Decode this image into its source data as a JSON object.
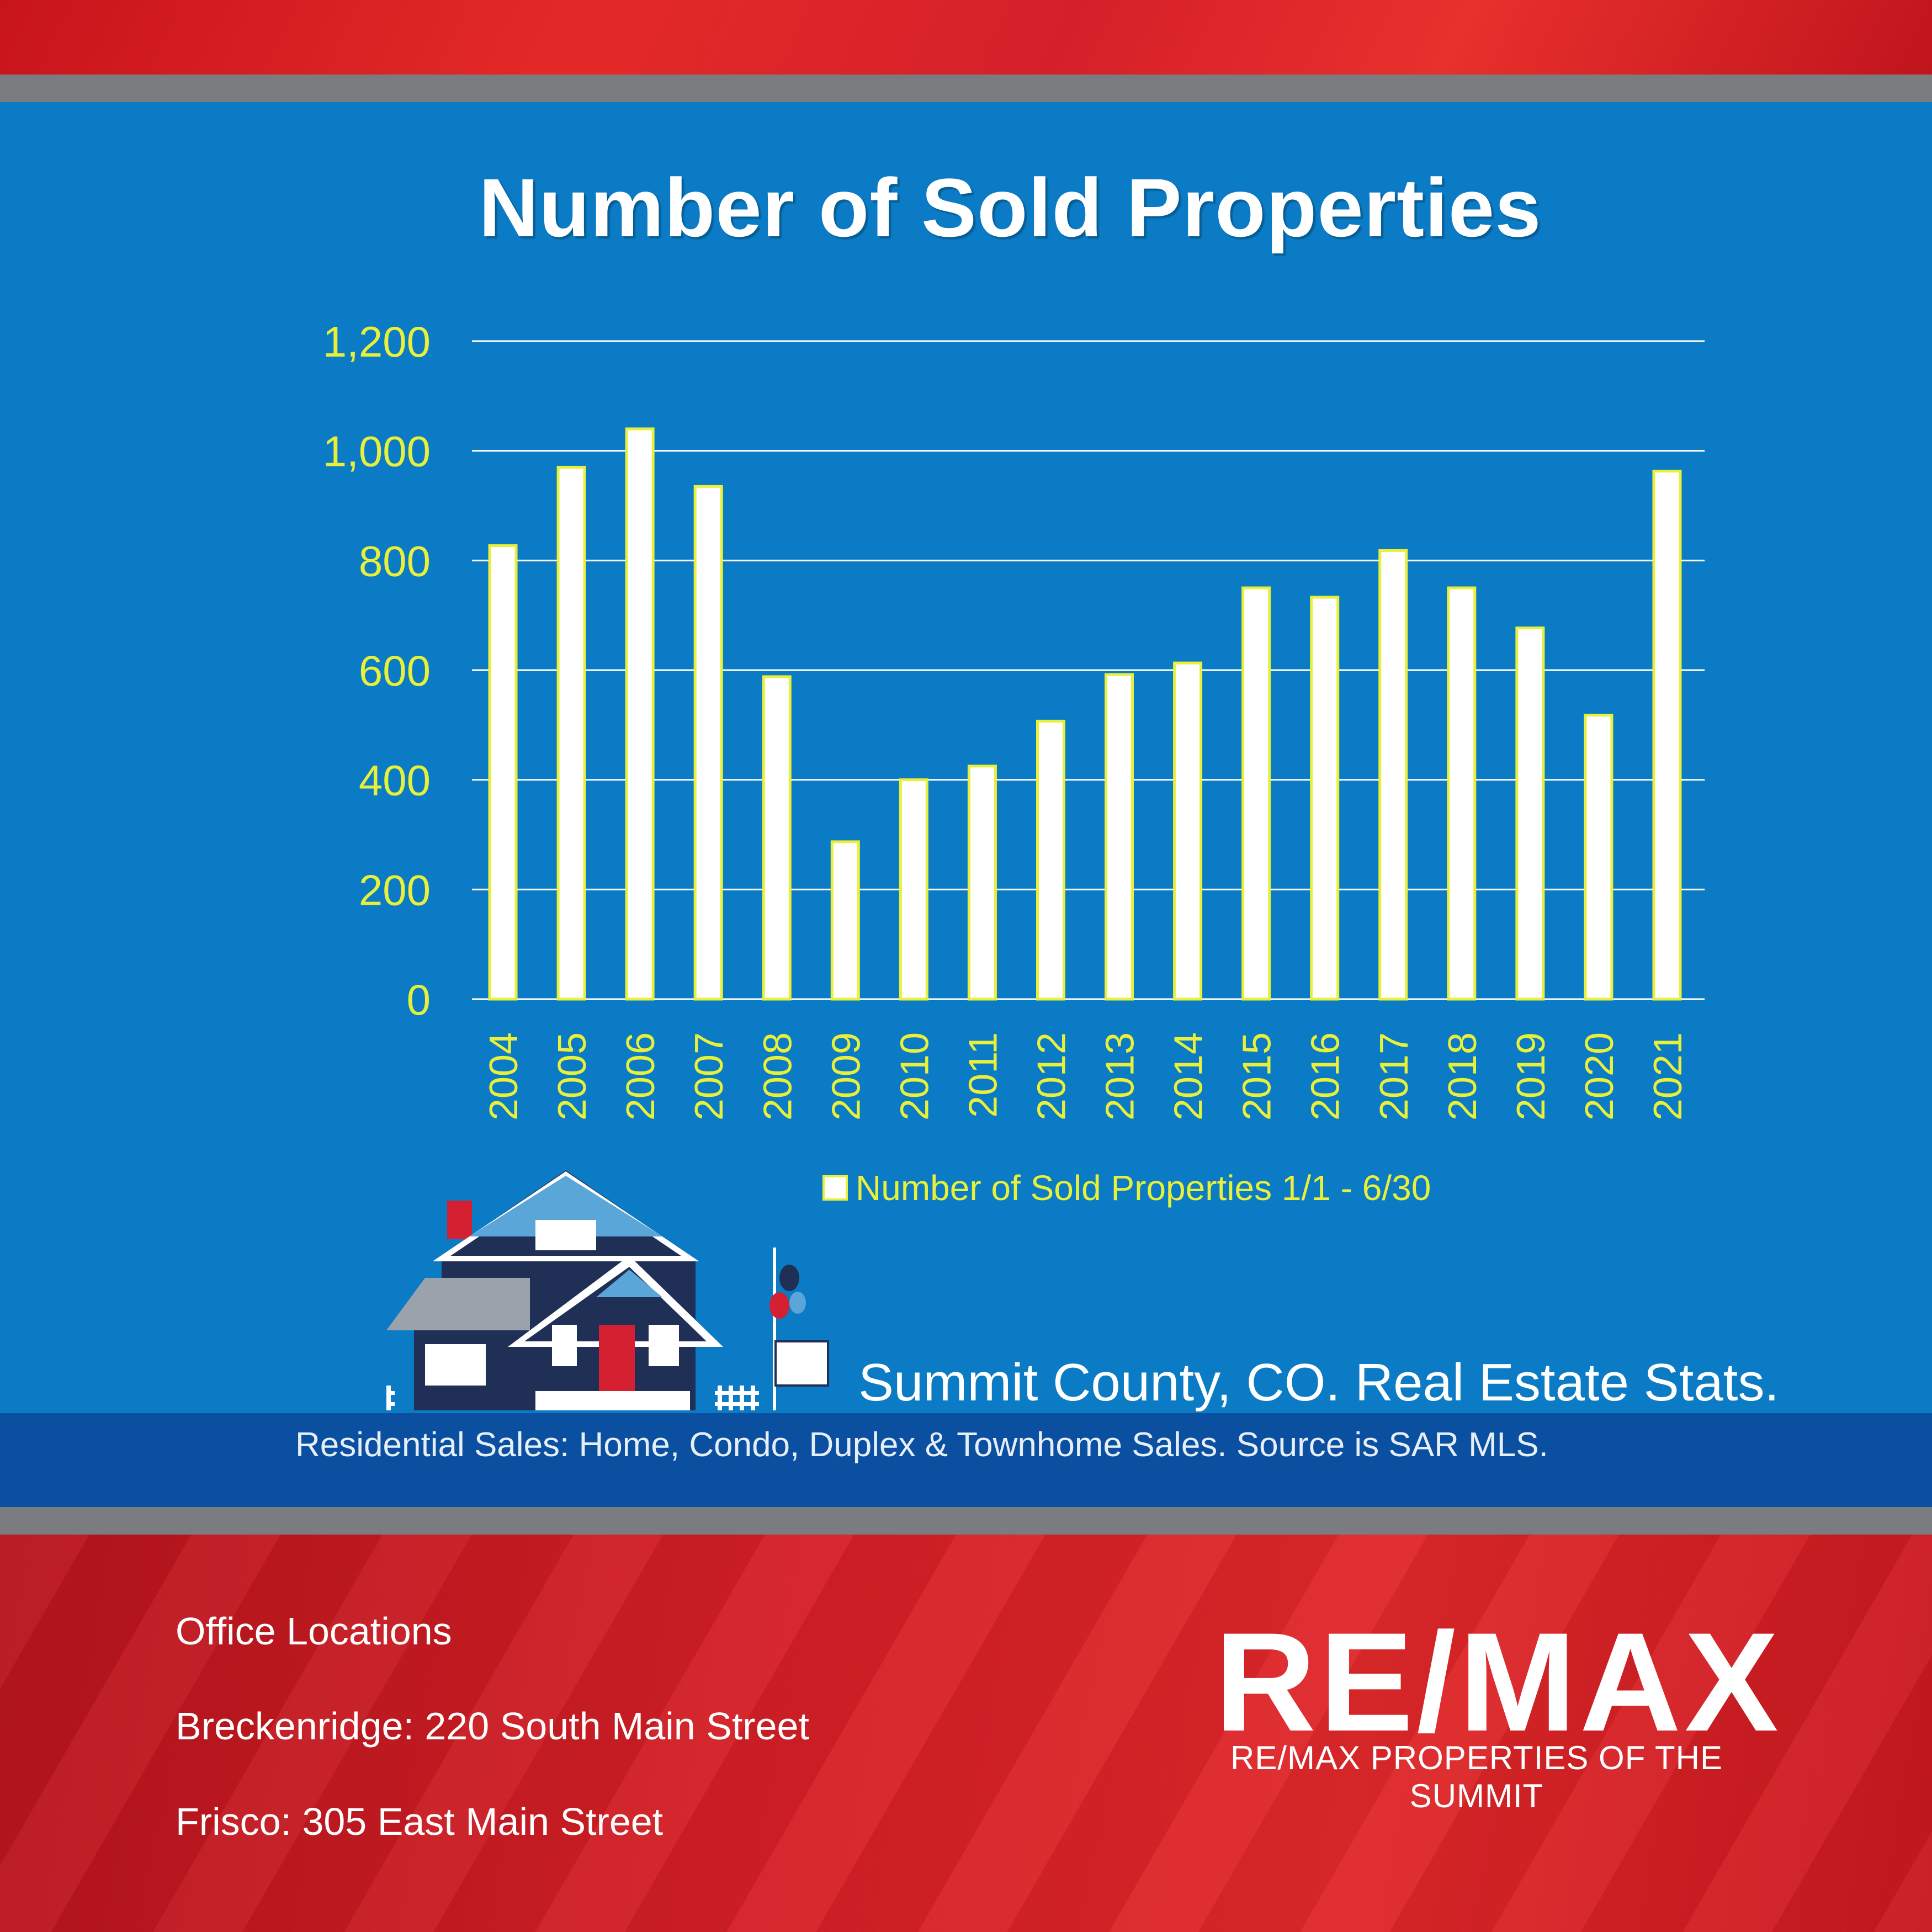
{
  "chart_data": {
    "type": "bar",
    "title": "Number of Sold Properties",
    "categories": [
      "2004",
      "2005",
      "2006",
      "2007",
      "2008",
      "2009",
      "2010",
      "2011",
      "2012",
      "2013",
      "2014",
      "2015",
      "2016",
      "2017",
      "2018",
      "2019",
      "2020",
      "2021"
    ],
    "series": [
      {
        "name": "Number of Sold Properties 1/1 - 6/30",
        "values": [
          827,
          970,
          1040,
          935,
          588,
          287,
          400,
          425,
          507,
          592,
          613,
          750,
          733,
          818,
          750,
          677,
          518,
          963
        ]
      }
    ],
    "y_ticks": [
      "0",
      "200",
      "400",
      "600",
      "800",
      "1,000",
      "1,200"
    ],
    "ylim": [
      0,
      1200
    ],
    "grid": true,
    "legend_position": "bottom"
  },
  "subtitle": "Summit County, CO. Real Estate Stats.",
  "source_note": "Residential  Sales: Home,  Condo,  Duplex & Townhome  Sales. Source is SAR MLS.",
  "offices": {
    "heading": "Office Locations",
    "lines": [
      "Breckenridge: 220 South Main Street",
      "Frisco: 305 East Main Street"
    ]
  },
  "brand": {
    "logo_text": "RE/MAX",
    "company": "RE/MAX PROPERTIES OF THE SUMMIT"
  },
  "colors": {
    "panel_blue": "#0a7bc4",
    "bar_fill": "#ffffff",
    "bar_stroke": "#e8f03a",
    "tick_label": "#e8f03a",
    "brand_red": "#d42126"
  }
}
